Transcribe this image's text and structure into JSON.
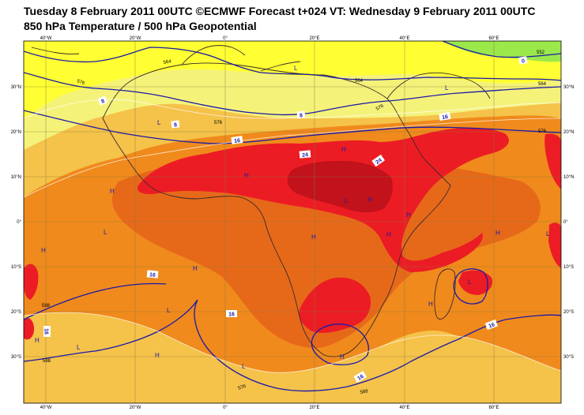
{
  "header": {
    "title": "Tuesday 8 February 2011 00UTC ©ECMWF Forecast t+024 VT: Wednesday 9 February 2011 00UTC",
    "subtitle": "850 hPa Temperature / 500 hPa Geopotential"
  },
  "axes": {
    "top_labels": [
      "40°W",
      "20°W",
      "0°",
      "20°E",
      "40°E",
      "60°E"
    ],
    "bottom_labels": [
      "40°W",
      "20°W",
      "0°",
      "20°E",
      "40°E",
      "60°E"
    ],
    "left_labels": [
      "30°N",
      "20°N",
      "10°N",
      "0°",
      "10°S",
      "20°S",
      "30°S"
    ],
    "right_labels": [
      "30°N",
      "20°N",
      "10°N",
      "0°",
      "10°S",
      "20°S",
      "30°S"
    ]
  },
  "contour_labels": {
    "temperature": [
      "0",
      "8",
      "8",
      "8",
      "16",
      "16",
      "24",
      "24",
      "16",
      "16",
      "16",
      "16",
      "16"
    ],
    "geopotential": [
      "564",
      "576",
      "564",
      "552",
      "564",
      "576",
      "576",
      "588",
      "588",
      "576",
      "576",
      "588"
    ]
  },
  "pressure_centres": [
    "H",
    "H",
    "H",
    "H",
    "H",
    "H",
    "H",
    "H",
    "H",
    "H",
    "H",
    "H",
    "H",
    "H",
    "L",
    "L",
    "L",
    "L",
    "L",
    "L",
    "L",
    "L",
    "L",
    "L"
  ],
  "colors": {
    "green": "#9be84a",
    "yellow": "#ffff33",
    "light_yellow": "#f5f27a",
    "light_orange": "#f5c24a",
    "orange": "#f08a1c",
    "dark_orange": "#e6691a",
    "red": "#ec1c24",
    "dark_red": "#c2121c",
    "contour": "#1a1aa8"
  }
}
